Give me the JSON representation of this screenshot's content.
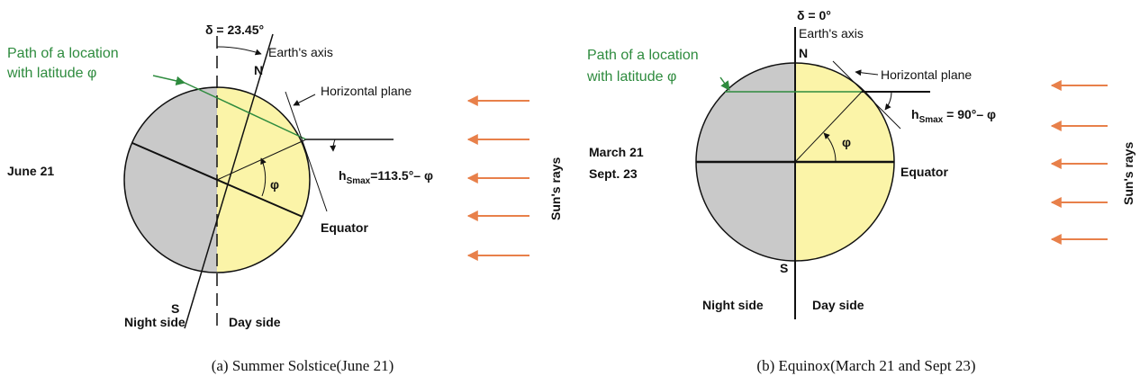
{
  "panels": [
    {
      "delta": "δ = 23.45°",
      "axis_label": "Earth's axis",
      "north": "N",
      "path_label": [
        "Path of a location",
        "with latitude φ"
      ],
      "horizontal_plane": "Horizontal plane",
      "date": [
        "June 21"
      ],
      "phi": "φ",
      "h": {
        "base": "h",
        "sub": "Smax",
        "rest": "=113.5°– φ"
      },
      "equator": "Equator",
      "sun_rays": "Sun's rays",
      "south": "S",
      "night_side": "Night side",
      "day_side": "Day side",
      "caption": "(a) Summer Solstice(June 21)"
    },
    {
      "delta": "δ = 0°",
      "axis_label": "Earth's axis",
      "north": "N",
      "path_label": [
        "Path of a location",
        "with latitude φ"
      ],
      "horizontal_plane": "Horizontal plane",
      "date": [
        "March 21",
        "Sept. 23"
      ],
      "phi": "φ",
      "h": {
        "base": "h",
        "sub": "Smax",
        "rest": " = 90°– φ"
      },
      "equator": "Equator",
      "sun_rays": "Sun's rays",
      "south": "S",
      "night_side": "Night side",
      "day_side": "Day side",
      "caption": "(b) Equinox(March 21 and Sept 23)"
    }
  ]
}
